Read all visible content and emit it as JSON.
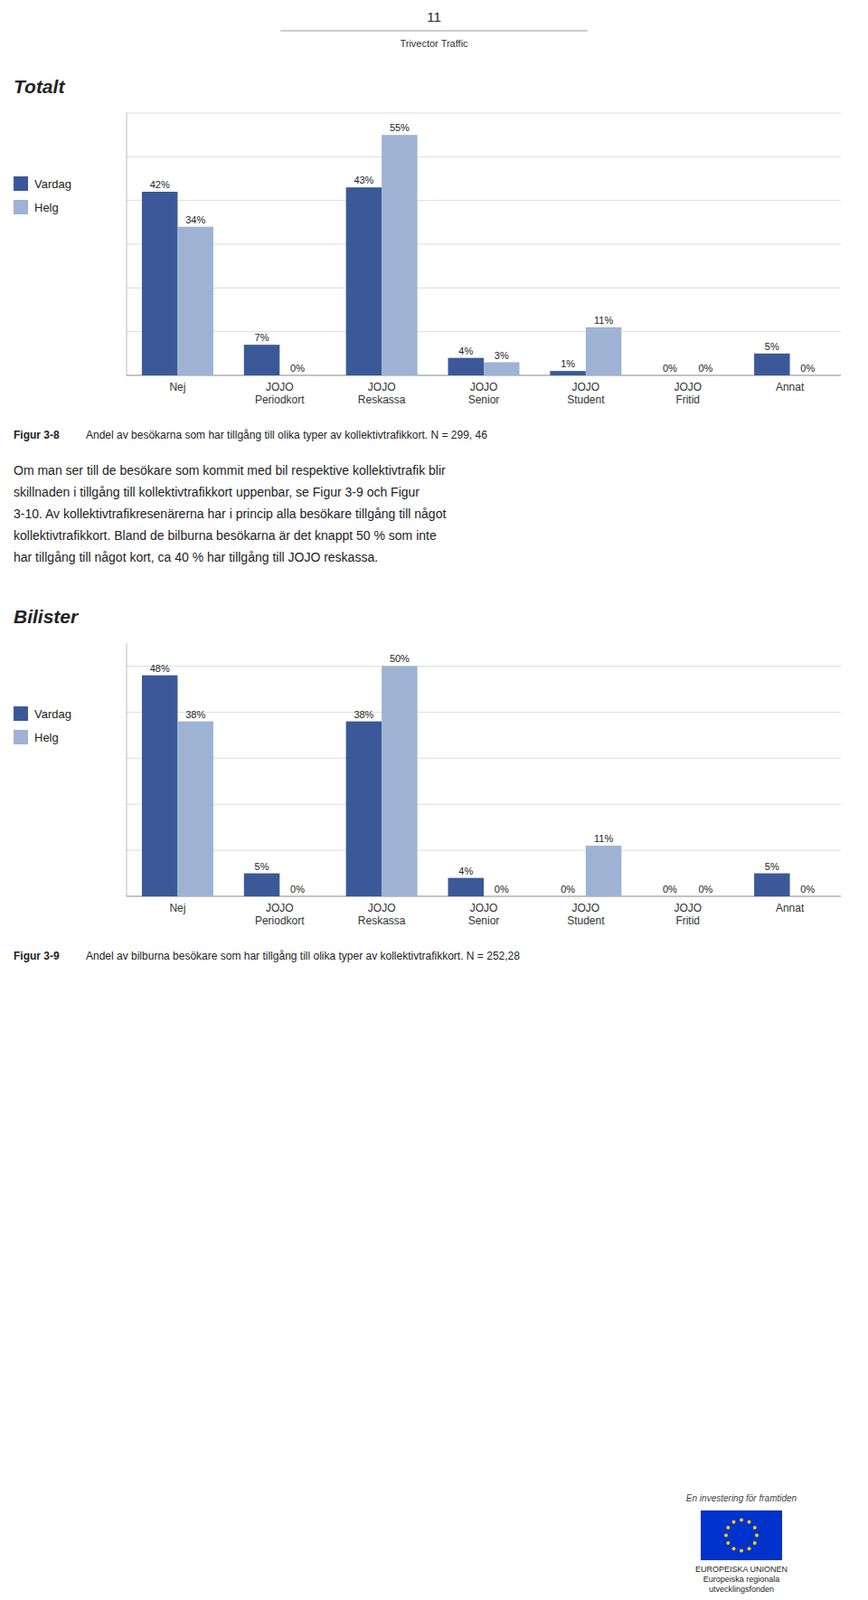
{
  "page_number": "11",
  "page_subtitle": "Trivector Traffic",
  "body_text": [
    "Om man ser till de besökare som kommit med bil respektive kollektivtrafik blir",
    "skillnaden i tillgång till kollektivtrafikkort uppenbar, se Figur 3-9 och Figur",
    "3-10. Av kollektivtrafikresenärerna har i princip alla besökare tillgång till något",
    "kollektivtrafikkort. Bland de bilburna besökarna är det knappt 50 % som inte",
    "har tillgång till något kort, ca 40 % har tillgång till JOJO reskassa."
  ],
  "footer_text": [
    "En investering för framtiden",
    "EUROPEISKA UNIONEN",
    "Europeiska regionala",
    "utvecklingsfonden"
  ],
  "chart_data": [
    {
      "type": "bar",
      "title": "Totalt",
      "caption": {
        "label": "Figur 3-8",
        "text": "Andel av besökarna som har tillgång till olika typer av kollektivtrafikkort. N = 299, 46"
      },
      "categories": [
        "Nej",
        "JOJO\nPeriodkort",
        "JOJO\nReskassa",
        "JOJO\nSenior",
        "JOJO\nStudent",
        "JOJO\nFritid",
        "Annat"
      ],
      "series": [
        {
          "name": "Vardag",
          "color": "#3B5998",
          "values": [
            42,
            7,
            43,
            4,
            1,
            0,
            5
          ],
          "value_labels": [
            "42%",
            "7%",
            "43%",
            "4%",
            "1%",
            "0%",
            "5%"
          ]
        },
        {
          "name": "Helg",
          "color": "#9EB3D4",
          "values": [
            34,
            0,
            55,
            3,
            11,
            0,
            0
          ],
          "value_labels": [
            "34%",
            "0%",
            "55%",
            "3%",
            "11%",
            "0%",
            "0%"
          ]
        }
      ],
      "ylim": [
        0,
        60
      ],
      "yticks": [
        0,
        10,
        20,
        30,
        40,
        50,
        60
      ],
      "grid": true,
      "legend": "left",
      "data_labels": true,
      "tick_labels": "x"
    },
    {
      "type": "bar",
      "title": "Bilister",
      "caption": {
        "label": "Figur 3-9",
        "text": "Andel av bilburna besökare som har tillgång till olika typer av kollektivtrafikkort. N = 252,28"
      },
      "categories": [
        "Nej",
        "JOJO\nPeriodkort",
        "JOJO\nReskassa",
        "JOJO\nSenior",
        "JOJO\nStudent",
        "JOJO\nFritid",
        "Annat"
      ],
      "series": [
        {
          "name": "Vardag",
          "color": "#3B5998",
          "values": [
            48,
            5,
            38,
            4,
            0,
            0,
            5
          ],
          "value_labels": [
            "48%",
            "5%",
            "38%",
            "4%",
            "0%",
            "0%",
            "5%"
          ]
        },
        {
          "name": "Helg",
          "color": "#9EB3D4",
          "values": [
            38,
            0,
            50,
            0,
            11,
            0,
            0
          ],
          "value_labels": [
            "38%",
            "0%",
            "50%",
            "0%",
            "11%",
            "0%",
            "0%"
          ]
        }
      ],
      "ylim": [
        0,
        55
      ],
      "yticks": [
        0,
        10,
        20,
        30,
        40,
        50
      ],
      "grid": true,
      "legend": "left",
      "data_labels": true,
      "tick_labels": "x"
    }
  ]
}
